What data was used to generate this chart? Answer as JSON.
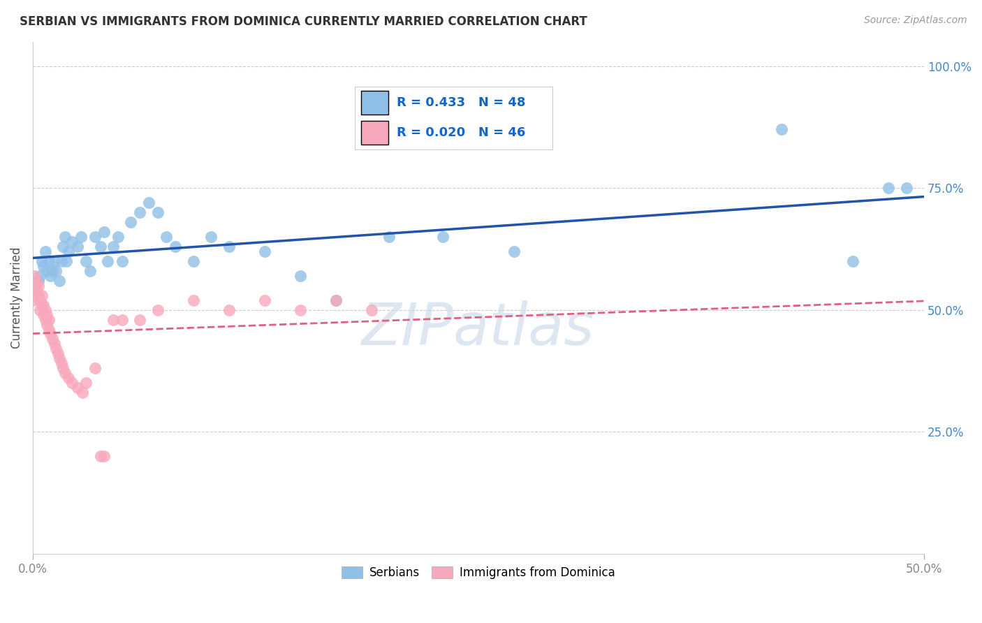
{
  "title": "SERBIAN VS IMMIGRANTS FROM DOMINICA CURRENTLY MARRIED CORRELATION CHART",
  "source": "Source: ZipAtlas.com",
  "ylabel_label": "Currently Married",
  "xlim": [
    0.0,
    0.5
  ],
  "ylim": [
    0.0,
    1.05
  ],
  "xtick_positions": [
    0.0,
    0.5
  ],
  "xtick_labels": [
    "0.0%",
    "50.0%"
  ],
  "ytick_positions": [
    0.25,
    0.5,
    0.75,
    1.0
  ],
  "ytick_labels": [
    "25.0%",
    "50.0%",
    "75.0%",
    "100.0%"
  ],
  "serbian_R": 0.433,
  "serbian_N": 48,
  "dominica_R": 0.02,
  "dominica_N": 46,
  "serbian_color": "#90c0e8",
  "dominica_color": "#f8a8bc",
  "serbian_line_color": "#2255aa",
  "dominica_line_color": "#e06080",
  "background_color": "#ffffff",
  "grid_color": "#cccccc",
  "watermark": "ZIPatlas",
  "serbian_x": [
    0.003,
    0.004,
    0.005,
    0.006,
    0.007,
    0.008,
    0.009,
    0.01,
    0.011,
    0.012,
    0.013,
    0.015,
    0.016,
    0.017,
    0.018,
    0.019,
    0.02,
    0.022,
    0.025,
    0.027,
    0.03,
    0.032,
    0.035,
    0.038,
    0.04,
    0.042,
    0.045,
    0.048,
    0.05,
    0.055,
    0.06,
    0.065,
    0.07,
    0.075,
    0.08,
    0.09,
    0.1,
    0.11,
    0.13,
    0.15,
    0.17,
    0.2,
    0.23,
    0.27,
    0.42,
    0.46,
    0.48,
    0.49
  ],
  "serbian_y": [
    0.56,
    0.57,
    0.6,
    0.59,
    0.62,
    0.58,
    0.6,
    0.57,
    0.58,
    0.6,
    0.58,
    0.56,
    0.6,
    0.63,
    0.65,
    0.6,
    0.62,
    0.64,
    0.63,
    0.65,
    0.6,
    0.58,
    0.65,
    0.63,
    0.66,
    0.6,
    0.63,
    0.65,
    0.6,
    0.68,
    0.7,
    0.72,
    0.7,
    0.65,
    0.63,
    0.6,
    0.65,
    0.63,
    0.62,
    0.57,
    0.52,
    0.65,
    0.65,
    0.62,
    0.87,
    0.6,
    0.75,
    0.75
  ],
  "dominica_x": [
    0.0,
    0.001,
    0.001,
    0.002,
    0.002,
    0.003,
    0.003,
    0.004,
    0.004,
    0.005,
    0.005,
    0.006,
    0.006,
    0.007,
    0.007,
    0.008,
    0.008,
    0.009,
    0.009,
    0.01,
    0.011,
    0.012,
    0.013,
    0.014,
    0.015,
    0.016,
    0.017,
    0.018,
    0.02,
    0.022,
    0.025,
    0.028,
    0.03,
    0.035,
    0.05,
    0.07,
    0.09,
    0.11,
    0.13,
    0.15,
    0.17,
    0.19,
    0.06,
    0.045,
    0.04,
    0.038
  ],
  "dominica_y": [
    0.52,
    0.55,
    0.57,
    0.54,
    0.56,
    0.53,
    0.55,
    0.5,
    0.52,
    0.51,
    0.53,
    0.49,
    0.51,
    0.48,
    0.5,
    0.47,
    0.49,
    0.46,
    0.48,
    0.45,
    0.44,
    0.43,
    0.42,
    0.41,
    0.4,
    0.39,
    0.38,
    0.37,
    0.36,
    0.35,
    0.34,
    0.33,
    0.35,
    0.38,
    0.48,
    0.5,
    0.52,
    0.5,
    0.52,
    0.5,
    0.52,
    0.5,
    0.48,
    0.48,
    0.2,
    0.2
  ]
}
